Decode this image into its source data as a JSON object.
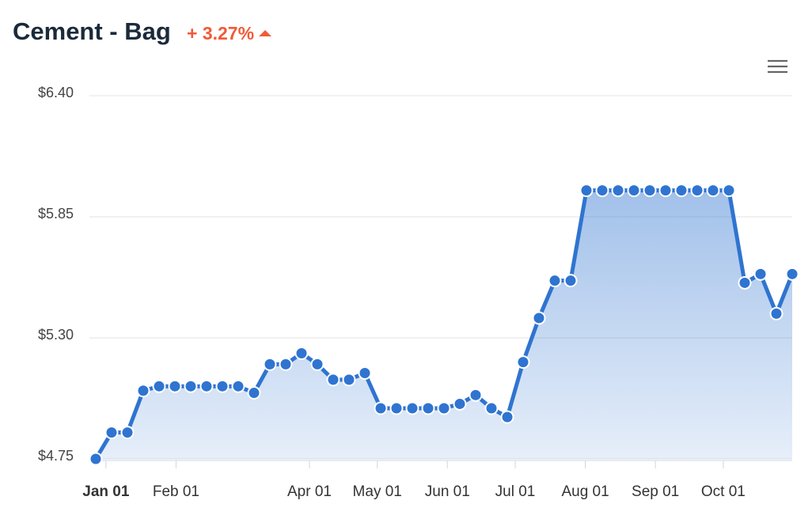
{
  "chart_data": {
    "type": "area",
    "title": "Cement - Bag",
    "change": "+ 3.27%",
    "x": [
      -4.5,
      2.5,
      9.5,
      16.5,
      23.5,
      30.5,
      37.5,
      44.5,
      51.5,
      58.5,
      65.5,
      72.5,
      79.5,
      86.5,
      93.5,
      100.5,
      107.5,
      114.5,
      121.5,
      128.5,
      135.5,
      142.5,
      149.5,
      156.5,
      163.5,
      170.5,
      177.5,
      184.5,
      191.5,
      198.5,
      205.5,
      212.5,
      219.5,
      226.5,
      233.5,
      240.5,
      247.5,
      254.5,
      261.5,
      268.5,
      275.5,
      282.5,
      289.5,
      296.5,
      303.5
    ],
    "values": [
      4.75,
      4.87,
      4.87,
      5.06,
      5.08,
      5.08,
      5.08,
      5.08,
      5.08,
      5.08,
      5.05,
      5.18,
      5.18,
      5.23,
      5.18,
      5.11,
      5.11,
      5.14,
      4.98,
      4.98,
      4.98,
      4.98,
      4.98,
      5.0,
      5.04,
      4.98,
      4.94,
      5.19,
      5.39,
      5.56,
      5.56,
      5.97,
      5.97,
      5.97,
      5.97,
      5.97,
      5.97,
      5.97,
      5.97,
      5.97,
      5.97,
      5.55,
      5.59,
      5.41,
      5.59
    ],
    "color": "#2f74d0",
    "xlim": [
      -4.5,
      303.5
    ],
    "xticks": [
      {
        "value": 0,
        "label": "Jan 01"
      },
      {
        "value": 31,
        "label": "Feb 01"
      },
      {
        "value": 90,
        "label": "Apr 01"
      },
      {
        "value": 120,
        "label": "May 01"
      },
      {
        "value": 151,
        "label": "Jun 01"
      },
      {
        "value": 181,
        "label": "Jul 01"
      },
      {
        "value": 212,
        "label": "Aug 01"
      },
      {
        "value": 243,
        "label": "Sep 01"
      },
      {
        "value": 273,
        "label": "Oct 01"
      }
    ],
    "ylim": [
      4.75,
      6.4
    ],
    "yticks": [
      {
        "value": 4.75,
        "label": "$4.75"
      },
      {
        "value": 5.3,
        "label": "$5.30"
      },
      {
        "value": 5.85,
        "label": "$5.85"
      },
      {
        "value": 6.4,
        "label": "$6.40"
      }
    ],
    "grid": true
  }
}
